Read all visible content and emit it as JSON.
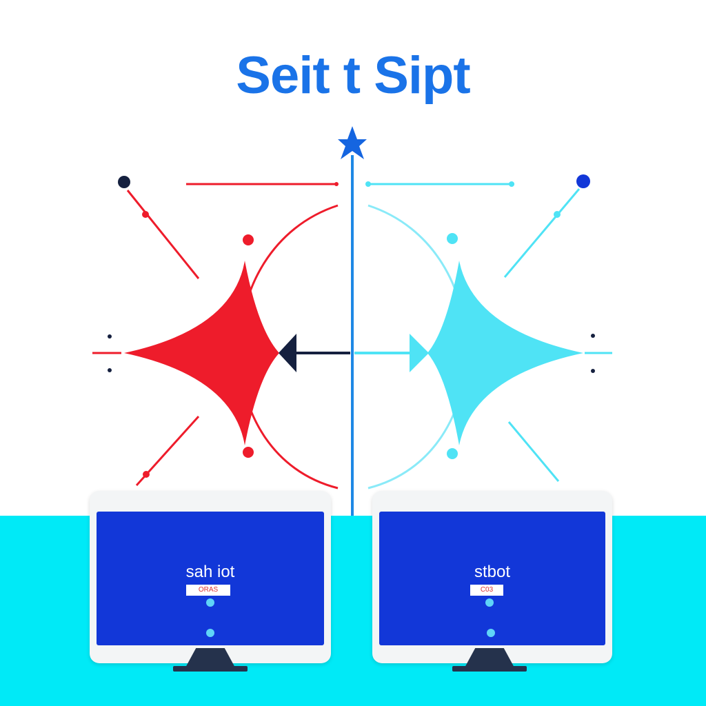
{
  "title": "Seit t Sipt",
  "colors": {
    "title": "#1a73e8",
    "left_accent": "#ee1c2b",
    "right_accent": "#4fe3f5",
    "divider": "#1e88e5",
    "arrow_left": "#15203f",
    "screen": "#1237d8",
    "floor": "#00eaf7"
  },
  "monitors": {
    "left": {
      "label": "sah iot",
      "badge": "ORAS"
    },
    "right": {
      "label": "stbot",
      "badge": "C03"
    }
  },
  "icons": {
    "top_marker": "star-icon",
    "left_shape": "four-point-star-shape",
    "right_shape": "four-point-star-shape"
  }
}
